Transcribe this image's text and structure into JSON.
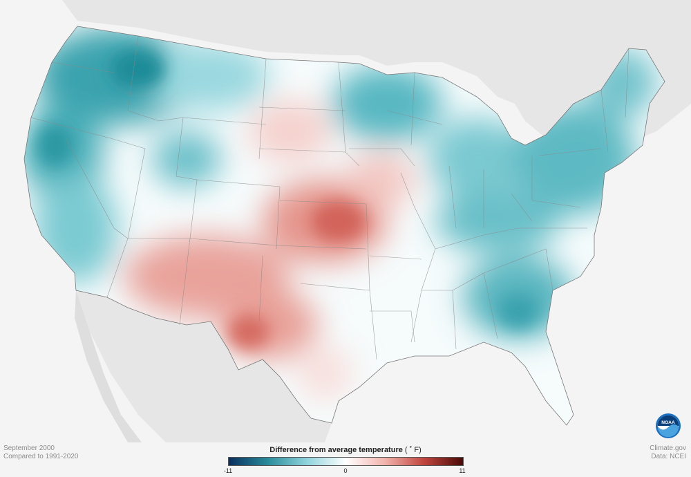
{
  "map": {
    "region": "Contiguous United States",
    "variable": "Difference from average temperature",
    "colormap": [
      "#0a2f5e",
      "#2a8c9a",
      "#8fd3dc",
      "#ffffff",
      "#f2b3ad",
      "#c0453e",
      "#4a0a08"
    ],
    "anomaly_regions": [
      {
        "area": "Northern Rockies / Pacific Northwest",
        "tendency": "cooler"
      },
      {
        "area": "California / Great Basin",
        "tendency": "cooler"
      },
      {
        "area": "Upper Midwest / Great Lakes",
        "tendency": "cooler"
      },
      {
        "area": "Northeast / Mid-Atlantic",
        "tendency": "cooler"
      },
      {
        "area": "Southeast",
        "tendency": "cooler"
      },
      {
        "area": "Southern Plains / Southwest",
        "tendency": "warmer"
      },
      {
        "area": "Central Plains",
        "tendency": "warmer"
      }
    ]
  },
  "caption": {
    "period": "September 2000",
    "baseline": "Compared to 1991-2020"
  },
  "legend": {
    "title": "Difference from average temperature",
    "unit": "( ˚ F)",
    "min_label": "-11",
    "mid_label": "0",
    "max_label": "11",
    "min_value": -11,
    "max_value": 11
  },
  "credits": {
    "source": "Climate.gov",
    "data": "Data: NCEI"
  },
  "logo": {
    "text": "NOAA",
    "colors": {
      "outer": "#1a6fc0",
      "inner": "#0b3f7a",
      "wave": "#4aa3df"
    }
  }
}
